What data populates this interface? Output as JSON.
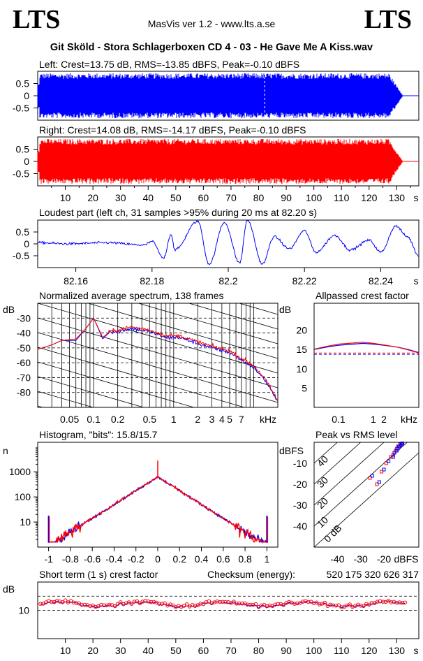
{
  "header": {
    "logo_left": "LTS",
    "logo_right": "LTS",
    "app_title": "MasVis ver 1.2 - www.lts.a.se",
    "file_title": "Git Sköld - Stora Schlagerboxen CD 4 - 03 - He Gave Me A Kiss.wav"
  },
  "colors": {
    "left": "#0000ff",
    "right": "#ff0000"
  },
  "chart_data": [
    {
      "type": "line",
      "id": "waveform-left",
      "title": "Left: Crest=13.75 dB, RMS=-13.85 dBFS, Peak=-0.10 dBFS",
      "series": [
        {
          "name": "",
          "color": "#0000ff"
        }
      ],
      "ylim": [
        -1,
        1
      ],
      "yticks": [
        "0.5",
        "0",
        "-0.5"
      ],
      "xlim": [
        0,
        138
      ],
      "marker_x": 82.2
    },
    {
      "type": "line",
      "id": "waveform-right",
      "title": "Right: Crest=14.08 dB, RMS=-14.17 dBFS, Peak=-0.10 dBFS",
      "series": [
        {
          "name": "",
          "color": "#ff0000"
        }
      ],
      "ylim": [
        -1,
        1
      ],
      "yticks": [
        "0.5",
        "0",
        "-0.5"
      ],
      "xlim": [
        0,
        138
      ],
      "xticks": [
        "10",
        "20",
        "30",
        "40",
        "50",
        "60",
        "70",
        "80",
        "90",
        "100",
        "110",
        "120",
        "130"
      ],
      "xunit": "s"
    },
    {
      "type": "line",
      "id": "loudest-part",
      "title": "Loudest part (left  ch, 31 samples >95% during 20 ms at 82.20 s)",
      "xlim": [
        82.15,
        82.25
      ],
      "xticks": [
        "82.16",
        "82.18",
        "82.2",
        "82.22",
        "82.24"
      ],
      "xunit": "s",
      "ylim": [
        -1,
        1
      ],
      "yticks": [
        "0.5",
        "0",
        "-0.5"
      ]
    },
    {
      "type": "line",
      "id": "average-spectrum",
      "title": "Normalized average spectrum, 138 frames",
      "ylabel": "dB",
      "yticks": [
        "-30",
        "-40",
        "-50",
        "-60",
        "-70",
        "-80"
      ],
      "ylim": [
        -90,
        -20
      ],
      "xscale": "log",
      "xlim": [
        0.02,
        20
      ],
      "xticks": [
        "0.05",
        "0.1",
        "0.2",
        "0.5",
        "1",
        "2",
        "3",
        "4",
        "5",
        "7"
      ],
      "xunit": "kHz",
      "series": [
        {
          "name": "",
          "color": "#0000ff",
          "x": [
            0.02,
            0.03,
            0.04,
            0.06,
            0.08,
            0.1,
            0.13,
            0.16,
            0.2,
            0.3,
            0.5,
            0.8,
            1.2,
            2,
            3,
            5,
            7,
            10,
            14,
            20
          ],
          "y": [
            -51,
            -48,
            -45,
            -45,
            -37,
            -30,
            -44,
            -39,
            -39,
            -37,
            -39,
            -43,
            -43,
            -47,
            -50,
            -53,
            -58,
            -63,
            -72,
            -86
          ]
        },
        {
          "name": "",
          "color": "#ff0000",
          "x": [
            0.02,
            0.03,
            0.04,
            0.06,
            0.08,
            0.1,
            0.13,
            0.16,
            0.2,
            0.3,
            0.5,
            0.8,
            1.2,
            2,
            3,
            5,
            7,
            10,
            14,
            20
          ],
          "y": [
            -51,
            -48,
            -45,
            -44,
            -37,
            -30,
            -43,
            -39,
            -38,
            -36,
            -38,
            -42,
            -42,
            -46,
            -49,
            -52,
            -57,
            -62,
            -71,
            -86
          ]
        }
      ]
    },
    {
      "type": "line",
      "id": "allpassed-crest",
      "title": "Allpassed crest factor",
      "ylabel": "dB",
      "yticks": [
        "20",
        "15",
        "10",
        "5"
      ],
      "ylim": [
        0,
        27
      ],
      "xscale": "log",
      "xlim": [
        0.02,
        20
      ],
      "xticks": [
        "0.1",
        "1",
        "2"
      ],
      "xunit": "kHz",
      "reference_lines": [
        13.75,
        14.08
      ],
      "series": [
        {
          "name": "",
          "color": "#0000ff",
          "x": [
            0.02,
            0.05,
            0.1,
            0.2,
            0.5,
            1,
            2,
            5,
            10,
            20
          ],
          "y": [
            15.0,
            15.7,
            16.1,
            16.3,
            16.6,
            16.4,
            16.1,
            15.6,
            15.0,
            14.2
          ]
        },
        {
          "name": "",
          "color": "#ff0000",
          "x": [
            0.02,
            0.05,
            0.1,
            0.2,
            0.5,
            1,
            2,
            5,
            10,
            20
          ],
          "y": [
            15.1,
            15.9,
            16.4,
            16.6,
            16.9,
            16.6,
            16.2,
            15.6,
            14.9,
            14.1
          ]
        }
      ]
    },
    {
      "type": "line",
      "id": "histogram",
      "title": "Histogram, \"bits\": 15.8/15.7",
      "ylabel": "n",
      "yscale": "log",
      "yticks": [
        "1000",
        "100",
        "10"
      ],
      "ylim": [
        1,
        15000
      ],
      "xlim": [
        -1.1,
        1.1
      ],
      "xticks": [
        "-1",
        "-0.8",
        "-0.6",
        "-0.4",
        "-0.2",
        "0",
        "0.2",
        "0.4",
        "0.6",
        "0.8",
        "1"
      ]
    },
    {
      "type": "scatter",
      "id": "peak-vs-rms",
      "title": "Peak vs RMS level",
      "ylabel": "dBFS",
      "xlabel": "dBFS",
      "yticks": [
        "-10",
        "-20",
        "-30",
        "-40"
      ],
      "xticks": [
        "-40",
        "-30",
        "-20"
      ],
      "xlim": [
        -50,
        -5
      ],
      "ylim": [
        -50,
        0
      ],
      "diagonal_labels": [
        "40",
        "30",
        "20",
        "10",
        "0 dB"
      ],
      "series": [
        {
          "name": "",
          "color": "#ff0000",
          "x": [
            -26,
            -23,
            -21,
            -19,
            -17,
            -16,
            -15,
            -14.5,
            -14,
            -13.5,
            -13,
            -12.5,
            -12
          ],
          "y": [
            -17,
            -20,
            -14,
            -10,
            -7,
            -6,
            -4,
            -3,
            -2,
            -2,
            -1,
            -1,
            -0.5
          ]
        },
        {
          "name": "",
          "color": "#0000ff",
          "x": [
            -25,
            -22,
            -20,
            -18,
            -16,
            -15.5,
            -14.5,
            -14,
            -13.5,
            -13,
            -12.5,
            -12.2
          ],
          "y": [
            -16,
            -19,
            -13,
            -9,
            -7,
            -5,
            -4,
            -3,
            -2,
            -1.5,
            -1,
            -0.5
          ]
        }
      ]
    },
    {
      "type": "scatter",
      "id": "short-term-crest",
      "title": "Short term (1 s) crest factor",
      "ylabel": "dB",
      "yticks": [
        "10"
      ],
      "ylim": [
        0,
        20
      ],
      "xlim": [
        0,
        138
      ],
      "xticks": [
        "10",
        "20",
        "30",
        "40",
        "50",
        "60",
        "70",
        "80",
        "90",
        "100",
        "110",
        "120",
        "130"
      ],
      "xunit": "s",
      "checksum_label": "Checksum (energy):",
      "checksum_value": "520 175 320 626 317"
    }
  ]
}
